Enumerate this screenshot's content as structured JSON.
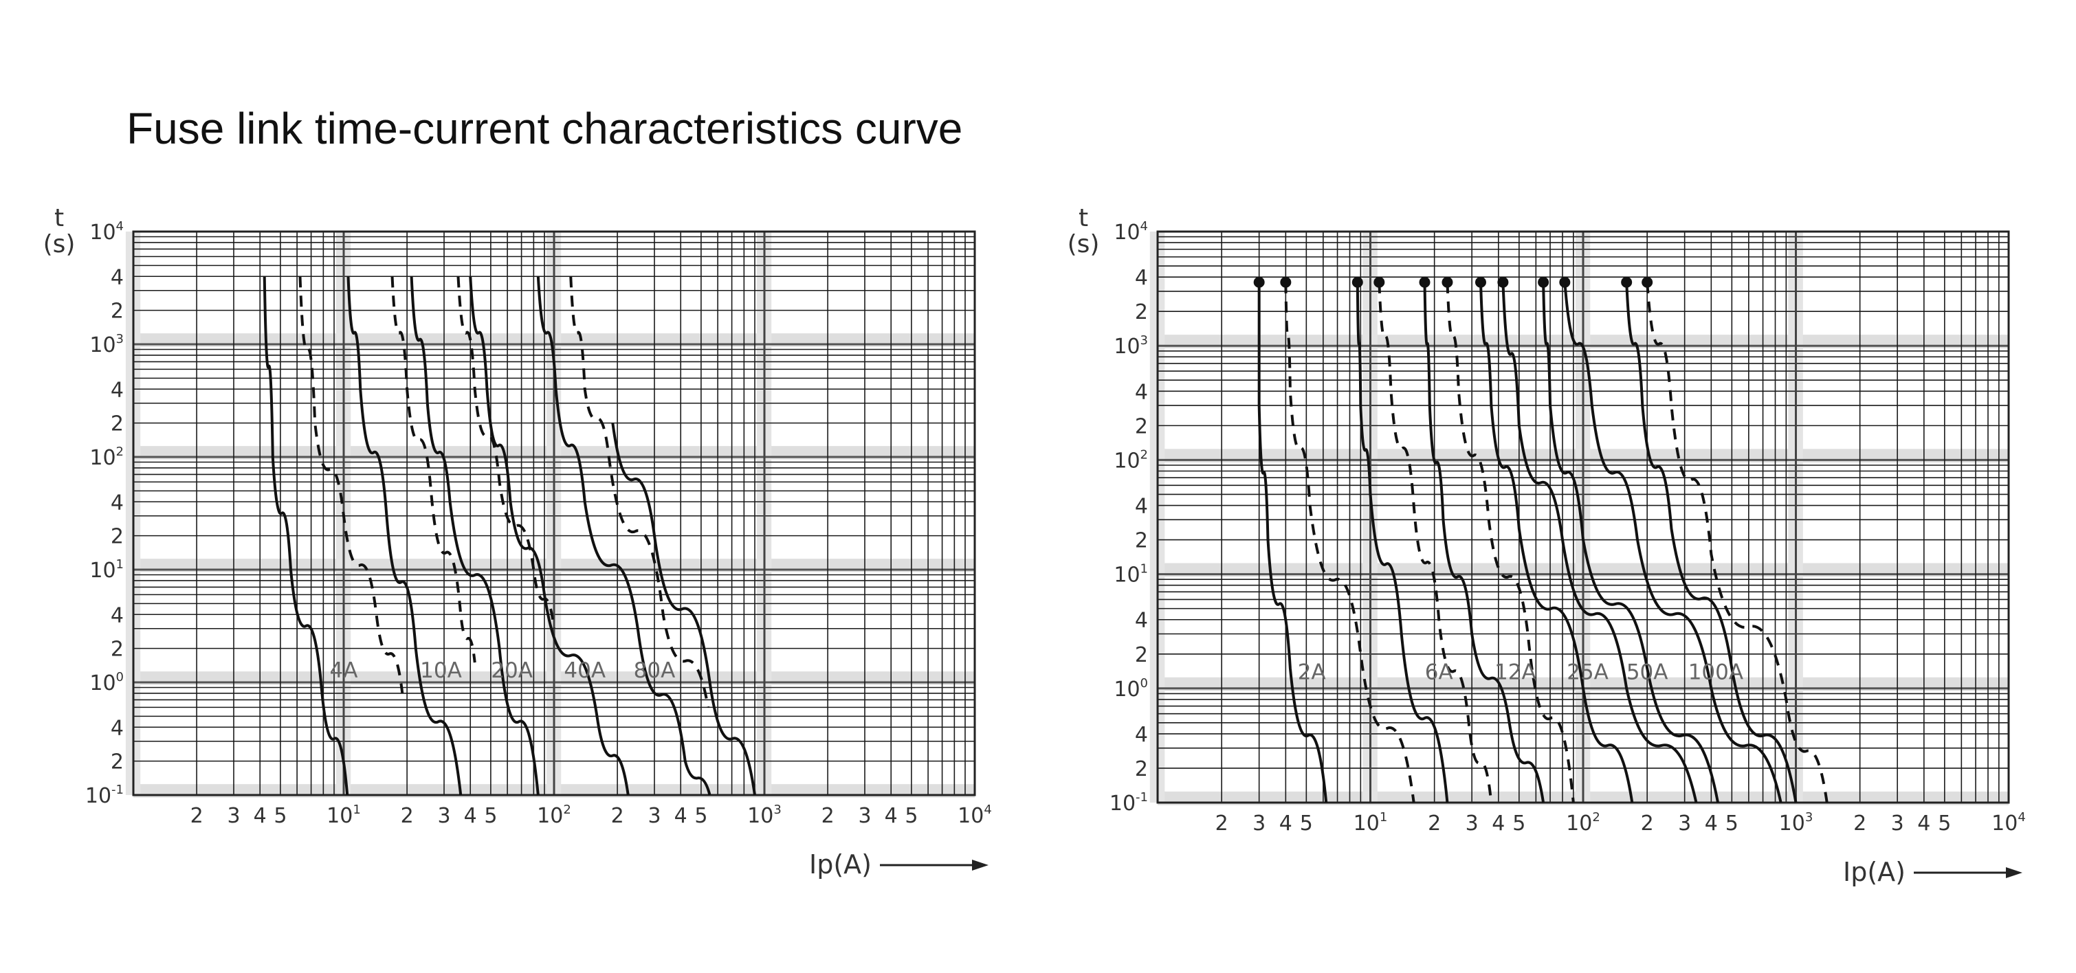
{
  "title": "Fuse link time-current characteristics curve",
  "chart_data": [
    {
      "type": "line",
      "x_scale": "log",
      "y_scale": "log",
      "xlim": [
        1,
        10000
      ],
      "ylim": [
        0.1,
        10000
      ],
      "xlabel": "Ip(A)",
      "ylabel_top": "t",
      "ylabel_bottom": "(s)",
      "grid": true,
      "y_ticks": [
        {
          "v": 10000,
          "b": "10",
          "e": "4"
        },
        {
          "v": 4000,
          "b": "4"
        },
        {
          "v": 2000,
          "b": "2"
        },
        {
          "v": 1000,
          "b": "10",
          "e": "3"
        },
        {
          "v": 400,
          "b": "4"
        },
        {
          "v": 200,
          "b": "2"
        },
        {
          "v": 100,
          "b": "10",
          "e": "2"
        },
        {
          "v": 40,
          "b": "4"
        },
        {
          "v": 20,
          "b": "2"
        },
        {
          "v": 10,
          "b": "10",
          "e": "1"
        },
        {
          "v": 4,
          "b": "4"
        },
        {
          "v": 2,
          "b": "2"
        },
        {
          "v": 1,
          "b": "10",
          "e": "0"
        },
        {
          "v": 0.4,
          "b": "4"
        },
        {
          "v": 0.2,
          "b": "2"
        },
        {
          "v": 0.1,
          "b": "10",
          "e": "-1"
        }
      ],
      "x_ticks": [
        {
          "v": 2,
          "b": "2"
        },
        {
          "v": 3,
          "b": "3"
        },
        {
          "v": 4,
          "b": "4"
        },
        {
          "v": 5,
          "b": "5"
        },
        {
          "v": 10,
          "b": "10",
          "e": "1"
        },
        {
          "v": 20,
          "b": "2"
        },
        {
          "v": 30,
          "b": "3"
        },
        {
          "v": 40,
          "b": "4"
        },
        {
          "v": 50,
          "b": "5"
        },
        {
          "v": 100,
          "b": "10",
          "e": "2"
        },
        {
          "v": 200,
          "b": "2"
        },
        {
          "v": 300,
          "b": "3"
        },
        {
          "v": 400,
          "b": "4"
        },
        {
          "v": 500,
          "b": "5"
        },
        {
          "v": 1000,
          "b": "10",
          "e": "3"
        },
        {
          "v": 2000,
          "b": "2"
        },
        {
          "v": 3000,
          "b": "3"
        },
        {
          "v": 4000,
          "b": "4"
        },
        {
          "v": 5000,
          "b": "5"
        },
        {
          "v": 10000,
          "b": "10",
          "e": "4"
        }
      ],
      "curves": [
        {
          "style": "solid",
          "points": [
            [
              4.2,
              4000
            ],
            [
              4.6,
              100
            ],
            [
              5.6,
              10
            ],
            [
              7.8,
              1
            ],
            [
              10.4,
              0.1
            ]
          ]
        },
        {
          "style": "dashed",
          "points": [
            [
              6.2,
              4000
            ],
            [
              7.3,
              200
            ],
            [
              10,
              30
            ],
            [
              14.3,
              4
            ],
            [
              19,
              0.8
            ]
          ]
        },
        {
          "style": "solid",
          "points": [
            [
              10.5,
              4000
            ],
            [
              12,
              400
            ],
            [
              16,
              30
            ],
            [
              22,
              2
            ],
            [
              36,
              0.1
            ]
          ]
        },
        {
          "style": "dashed",
          "points": [
            [
              17,
              4000
            ],
            [
              20,
              400
            ],
            [
              26,
              50
            ],
            [
              36,
              4
            ],
            [
              42,
              1.5
            ]
          ]
        },
        {
          "style": "solid",
          "points": [
            [
              21,
              4000
            ],
            [
              25,
              300
            ],
            [
              32,
              40
            ],
            [
              55,
              2
            ],
            [
              84,
              0.1
            ]
          ]
        },
        {
          "style": "dashed",
          "points": [
            [
              35,
              4000
            ],
            [
              42,
              400
            ],
            [
              55,
              60
            ],
            [
              80,
              10
            ],
            [
              100,
              3
            ]
          ]
        },
        {
          "style": "solid",
          "points": [
            [
              40,
              4000
            ],
            [
              48,
              400
            ],
            [
              62,
              40
            ],
            [
              90,
              6
            ],
            [
              160,
              0.5
            ],
            [
              225,
              0.1
            ]
          ]
        },
        {
          "style": "solid",
          "points": [
            [
              84,
              4000
            ],
            [
              102,
              400
            ],
            [
              140,
              40
            ],
            [
              250,
              3
            ],
            [
              420,
              0.2
            ],
            [
              550,
              0.1
            ]
          ]
        },
        {
          "style": "dashed",
          "points": [
            [
              120,
              4000
            ],
            [
              140,
              400
            ],
            [
              180,
              120
            ],
            [
              330,
              4
            ],
            [
              540,
              0.6
            ]
          ]
        },
        {
          "style": "solid",
          "points": [
            [
              190,
              200
            ],
            [
              300,
              20
            ],
            [
              550,
              1
            ],
            [
              900,
              0.1
            ]
          ]
        }
      ],
      "labels": [
        {
          "text": "4A",
          "x": 10,
          "y": 1.1
        },
        {
          "text": "10A",
          "x": 29,
          "y": 1.1
        },
        {
          "text": "20A",
          "x": 63,
          "y": 1.1
        },
        {
          "text": "40A",
          "x": 140,
          "y": 1.1
        },
        {
          "text": "80A",
          "x": 300,
          "y": 1.1
        }
      ]
    },
    {
      "type": "line",
      "x_scale": "log",
      "y_scale": "log",
      "xlim": [
        1,
        10000
      ],
      "ylim": [
        0.1,
        10000
      ],
      "xlabel": "Ip(A)",
      "ylabel_top": "t",
      "ylabel_bottom": "(s)",
      "grid": true,
      "y_ticks": [
        {
          "v": 10000,
          "b": "10",
          "e": "4"
        },
        {
          "v": 4000,
          "b": "4"
        },
        {
          "v": 2000,
          "b": "2"
        },
        {
          "v": 1000,
          "b": "10",
          "e": "3"
        },
        {
          "v": 400,
          "b": "4"
        },
        {
          "v": 200,
          "b": "2"
        },
        {
          "v": 100,
          "b": "10",
          "e": "2"
        },
        {
          "v": 40,
          "b": "4"
        },
        {
          "v": 20,
          "b": "2"
        },
        {
          "v": 10,
          "b": "10",
          "e": "1"
        },
        {
          "v": 4,
          "b": "4"
        },
        {
          "v": 2,
          "b": "2"
        },
        {
          "v": 1,
          "b": "10",
          "e": "0"
        },
        {
          "v": 0.4,
          "b": "4"
        },
        {
          "v": 0.2,
          "b": "2"
        },
        {
          "v": 0.1,
          "b": "10",
          "e": "-1"
        }
      ],
      "x_ticks": [
        {
          "v": 2,
          "b": "2"
        },
        {
          "v": 3,
          "b": "3"
        },
        {
          "v": 4,
          "b": "4"
        },
        {
          "v": 5,
          "b": "5"
        },
        {
          "v": 10,
          "b": "10",
          "e": "1"
        },
        {
          "v": 20,
          "b": "2"
        },
        {
          "v": 30,
          "b": "3"
        },
        {
          "v": 40,
          "b": "4"
        },
        {
          "v": 50,
          "b": "5"
        },
        {
          "v": 100,
          "b": "10",
          "e": "2"
        },
        {
          "v": 200,
          "b": "2"
        },
        {
          "v": 300,
          "b": "3"
        },
        {
          "v": 400,
          "b": "4"
        },
        {
          "v": 500,
          "b": "5"
        },
        {
          "v": 1000,
          "b": "10",
          "e": "3"
        },
        {
          "v": 2000,
          "b": "2"
        },
        {
          "v": 3000,
          "b": "3"
        },
        {
          "v": 4000,
          "b": "4"
        },
        {
          "v": 5000,
          "b": "5"
        },
        {
          "v": 10000,
          "b": "10",
          "e": "4"
        }
      ],
      "curves": [
        {
          "style": "solid",
          "points": [
            [
              3,
              3600
            ],
            [
              3,
              300
            ],
            [
              3.3,
              20
            ],
            [
              4.2,
              1.5
            ],
            [
              6.2,
              0.1
            ]
          ],
          "marker": true
        },
        {
          "style": "dashed",
          "points": [
            [
              4,
              3600
            ],
            [
              4.2,
              400
            ],
            [
              5.2,
              40
            ],
            [
              9,
              2
            ],
            [
              16,
              0.1
            ]
          ],
          "marker": true
        },
        {
          "style": "solid",
          "points": [
            [
              8.7,
              3600
            ],
            [
              9,
              300
            ],
            [
              10,
              50
            ],
            [
              14,
              3
            ],
            [
              23,
              0.1
            ]
          ],
          "marker": true
        },
        {
          "style": "dashed",
          "points": [
            [
              11,
              3600
            ],
            [
              12.5,
              400
            ],
            [
              16,
              40
            ],
            [
              21,
              4
            ],
            [
              29,
              0.5
            ],
            [
              37,
              0.1
            ]
          ],
          "marker": true
        },
        {
          "style": "solid",
          "points": [
            [
              18,
              3600
            ],
            [
              19,
              300
            ],
            [
              22,
              30
            ],
            [
              30,
              3
            ],
            [
              45,
              0.5
            ],
            [
              65,
              0.1
            ]
          ],
          "marker": true
        },
        {
          "style": "dashed",
          "points": [
            [
              23,
              3600
            ],
            [
              26,
              400
            ],
            [
              36,
              30
            ],
            [
              55,
              3
            ],
            [
              90,
              0.1
            ]
          ],
          "marker": true
        },
        {
          "style": "solid",
          "points": [
            [
              33,
              3600
            ],
            [
              37,
              300
            ],
            [
              50,
              25
            ],
            [
              100,
              1
            ],
            [
              170,
              0.1
            ]
          ],
          "marker": true
        },
        {
          "style": "solid",
          "points": [
            [
              42,
              3600
            ],
            [
              50,
              200
            ],
            [
              80,
              20
            ],
            [
              160,
              1
            ],
            [
              340,
              0.1
            ]
          ],
          "marker": true
        },
        {
          "style": "solid",
          "points": [
            [
              65,
              3600
            ],
            [
              70,
              300
            ],
            [
              100,
              20
            ],
            [
              200,
              1.5
            ],
            [
              430,
              0.1
            ]
          ],
          "marker": true
        },
        {
          "style": "solid",
          "points": [
            [
              82,
              3600
            ],
            [
              110,
              300
            ],
            [
              180,
              20
            ],
            [
              400,
              1
            ],
            [
              850,
              0.1
            ]
          ],
          "marker": true
        },
        {
          "style": "solid",
          "points": [
            [
              160,
              3600
            ],
            [
              190,
              300
            ],
            [
              260,
              25
            ],
            [
              500,
              1.5
            ],
            [
              1000,
              0.1
            ]
          ],
          "marker": true
        },
        {
          "style": "dashed",
          "points": [
            [
              200,
              3600
            ],
            [
              260,
              300
            ],
            [
              400,
              15
            ],
            [
              900,
              0.8
            ],
            [
              1400,
              0.1
            ]
          ],
          "marker": true
        }
      ],
      "labels": [
        {
          "text": "2A",
          "x": 5.3,
          "y": 1.2
        },
        {
          "text": "6A",
          "x": 21,
          "y": 1.2
        },
        {
          "text": "12A",
          "x": 48,
          "y": 1.2
        },
        {
          "text": "25A",
          "x": 105,
          "y": 1.2
        },
        {
          "text": "50A",
          "x": 200,
          "y": 1.2
        },
        {
          "text": "100A",
          "x": 420,
          "y": 1.2
        }
      ]
    }
  ]
}
